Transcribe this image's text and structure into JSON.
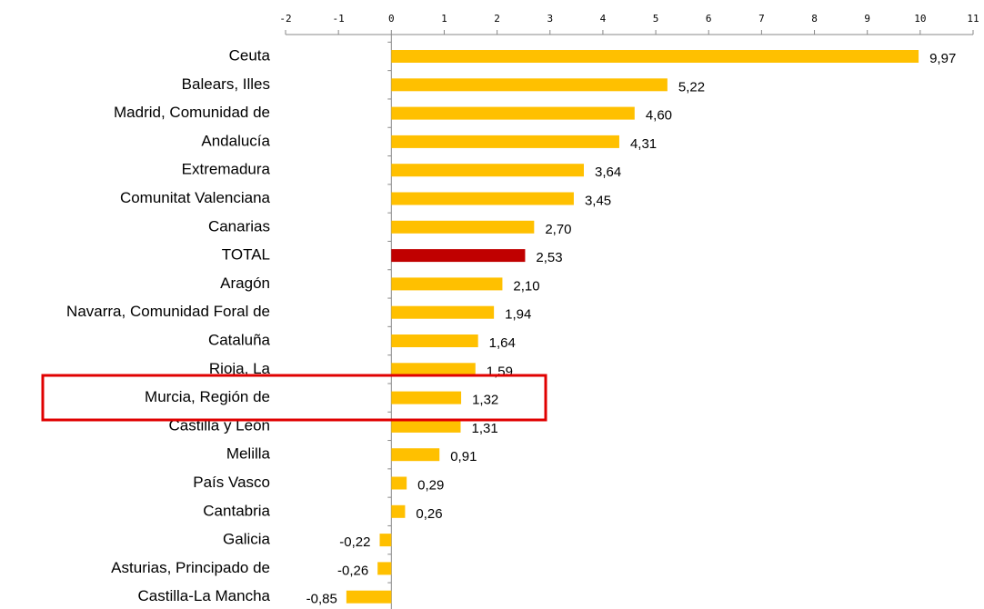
{
  "chart_data": {
    "type": "hbar",
    "categories": [
      "Ceuta",
      "Balears, Illes",
      "Madrid, Comunidad de",
      "Andalucía",
      "Extremadura",
      "Comunitat Valenciana",
      "Canarias",
      "TOTAL",
      "Aragón",
      "Navarra, Comunidad Foral de",
      "Cataluña",
      "Rioja, La",
      "Murcia, Región de",
      "Castilla y León",
      "Melilla",
      "País Vasco",
      "Cantabria",
      "Galicia",
      "Asturias, Principado de",
      "Castilla-La Mancha"
    ],
    "values": [
      9.97,
      5.22,
      4.6,
      4.31,
      3.64,
      3.45,
      2.7,
      2.53,
      2.1,
      1.94,
      1.64,
      1.59,
      1.32,
      1.31,
      0.91,
      0.29,
      0.26,
      -0.22,
      -0.26,
      -0.85
    ],
    "value_labels": [
      "9,97",
      "5,22",
      "4,60",
      "4,31",
      "3,64",
      "3,45",
      "2,70",
      "2,53",
      "2,10",
      "1,94",
      "1,64",
      "1,59",
      "1,32",
      "1,31",
      "0,91",
      "0,29",
      "0,26",
      "-0,22",
      "-0,26",
      "-0,85"
    ],
    "colors": [
      "#ffc000",
      "#ffc000",
      "#ffc000",
      "#ffc000",
      "#ffc000",
      "#ffc000",
      "#ffc000",
      "#c00000",
      "#ffc000",
      "#ffc000",
      "#ffc000",
      "#ffc000",
      "#ffc000",
      "#ffc000",
      "#ffc000",
      "#ffc000",
      "#ffc000",
      "#ffc000",
      "#ffc000",
      "#ffc000"
    ],
    "xlim": [
      -2,
      11
    ],
    "xticks": [
      -2,
      -1,
      0,
      1,
      2,
      3,
      4,
      5,
      6,
      7,
      8,
      9,
      10,
      11
    ]
  }
}
